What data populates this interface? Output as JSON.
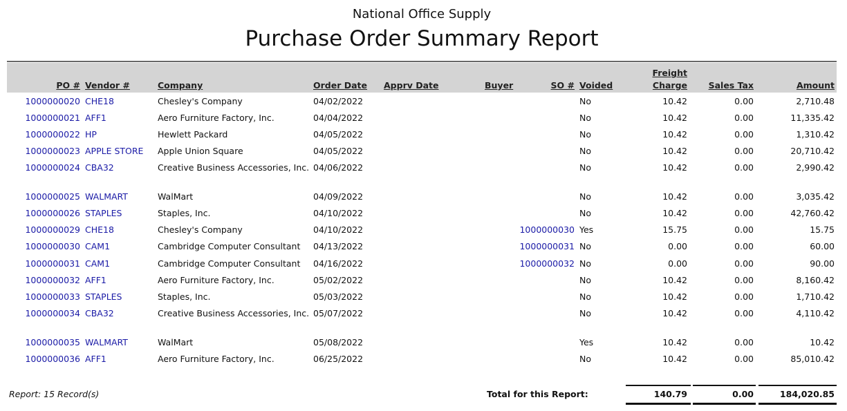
{
  "header": {
    "company": "National Office Supply",
    "title": "Purchase Order Summary Report"
  },
  "columns": {
    "po": "PO #",
    "vendor": "Vendor #",
    "company": "Company",
    "order_date": "Order Date",
    "apprv_date": "Apprv Date",
    "buyer": "Buyer",
    "so": "SO #",
    "voided": "Voided",
    "freight_1": "Freight",
    "freight_2": "Charge",
    "sales_tax": "Sales Tax",
    "amount": "Amount"
  },
  "colors": {
    "link": "#1a1aa6",
    "header_band": "#d4d4d4"
  },
  "rows": [
    {
      "po": "1000000020",
      "vendor": "CHE18",
      "company": "Chesley's Company",
      "order_date": "04/02/2022",
      "apprv_date": "",
      "buyer": "",
      "so": "",
      "voided": "No",
      "freight": "10.42",
      "sales_tax": "0.00",
      "amount": "2,710.48"
    },
    {
      "po": "1000000021",
      "vendor": "AFF1",
      "company": "Aero Furniture Factory, Inc.",
      "order_date": "04/04/2022",
      "apprv_date": "",
      "buyer": "",
      "so": "",
      "voided": "No",
      "freight": "10.42",
      "sales_tax": "0.00",
      "amount": "11,335.42"
    },
    {
      "po": "1000000022",
      "vendor": "HP",
      "company": "Hewlett Packard",
      "order_date": "04/05/2022",
      "apprv_date": "",
      "buyer": "",
      "so": "",
      "voided": "No",
      "freight": "10.42",
      "sales_tax": "0.00",
      "amount": "1,310.42"
    },
    {
      "po": "1000000023",
      "vendor": "APPLE STORE",
      "company": "Apple Union Square",
      "order_date": "04/05/2022",
      "apprv_date": "",
      "buyer": "",
      "so": "",
      "voided": "No",
      "freight": "10.42",
      "sales_tax": "0.00",
      "amount": "20,710.42"
    },
    {
      "po": "1000000024",
      "vendor": "CBA32",
      "company": "Creative Business Accessories, Inc.",
      "order_date": "04/06/2022",
      "apprv_date": "",
      "buyer": "",
      "so": "",
      "voided": "No",
      "freight": "10.42",
      "sales_tax": "0.00",
      "amount": "2,990.42"
    },
    {
      "po": "1000000025",
      "vendor": "WALMART",
      "company": "WalMart",
      "order_date": "04/09/2022",
      "apprv_date": "",
      "buyer": "",
      "so": "",
      "voided": "No",
      "freight": "10.42",
      "sales_tax": "0.00",
      "amount": "3,035.42"
    },
    {
      "po": "1000000026",
      "vendor": "STAPLES",
      "company": "Staples, Inc.",
      "order_date": "04/10/2022",
      "apprv_date": "",
      "buyer": "",
      "so": "",
      "voided": "No",
      "freight": "10.42",
      "sales_tax": "0.00",
      "amount": "42,760.42"
    },
    {
      "po": "1000000029",
      "vendor": "CHE18",
      "company": "Chesley's Company",
      "order_date": "04/10/2022",
      "apprv_date": "",
      "buyer": "",
      "so": "1000000030",
      "voided": "Yes",
      "freight": "15.75",
      "sales_tax": "0.00",
      "amount": "15.75"
    },
    {
      "po": "1000000030",
      "vendor": "CAM1",
      "company": "Cambridge Computer Consultant",
      "order_date": "04/13/2022",
      "apprv_date": "",
      "buyer": "",
      "so": "1000000031",
      "voided": "No",
      "freight": "0.00",
      "sales_tax": "0.00",
      "amount": "60.00"
    },
    {
      "po": "1000000031",
      "vendor": "CAM1",
      "company": "Cambridge Computer Consultant",
      "order_date": "04/16/2022",
      "apprv_date": "",
      "buyer": "",
      "so": "1000000032",
      "voided": "No",
      "freight": "0.00",
      "sales_tax": "0.00",
      "amount": "90.00"
    },
    {
      "po": "1000000032",
      "vendor": "AFF1",
      "company": "Aero Furniture Factory, Inc.",
      "order_date": "05/02/2022",
      "apprv_date": "",
      "buyer": "",
      "so": "",
      "voided": "No",
      "freight": "10.42",
      "sales_tax": "0.00",
      "amount": "8,160.42"
    },
    {
      "po": "1000000033",
      "vendor": "STAPLES",
      "company": "Staples, Inc.",
      "order_date": "05/03/2022",
      "apprv_date": "",
      "buyer": "",
      "so": "",
      "voided": "No",
      "freight": "10.42",
      "sales_tax": "0.00",
      "amount": "1,710.42"
    },
    {
      "po": "1000000034",
      "vendor": "CBA32",
      "company": "Creative Business Accessories, Inc.",
      "order_date": "05/07/2022",
      "apprv_date": "",
      "buyer": "",
      "so": "",
      "voided": "No",
      "freight": "10.42",
      "sales_tax": "0.00",
      "amount": "4,110.42"
    },
    {
      "po": "1000000035",
      "vendor": "WALMART",
      "company": "WalMart",
      "order_date": "05/08/2022",
      "apprv_date": "",
      "buyer": "",
      "so": "",
      "voided": "Yes",
      "freight": "10.42",
      "sales_tax": "0.00",
      "amount": "10.42"
    },
    {
      "po": "1000000036",
      "vendor": "AFF1",
      "company": "Aero Furniture Factory, Inc.",
      "order_date": "06/25/2022",
      "apprv_date": "",
      "buyer": "",
      "so": "",
      "voided": "No",
      "freight": "10.42",
      "sales_tax": "0.00",
      "amount": "85,010.42"
    }
  ],
  "footer": {
    "record_count": "Report: 15 Record(s)",
    "total_label": "Total for this Report:",
    "total_freight": "140.79",
    "total_sales_tax": "0.00",
    "total_amount": "184,020.85"
  }
}
